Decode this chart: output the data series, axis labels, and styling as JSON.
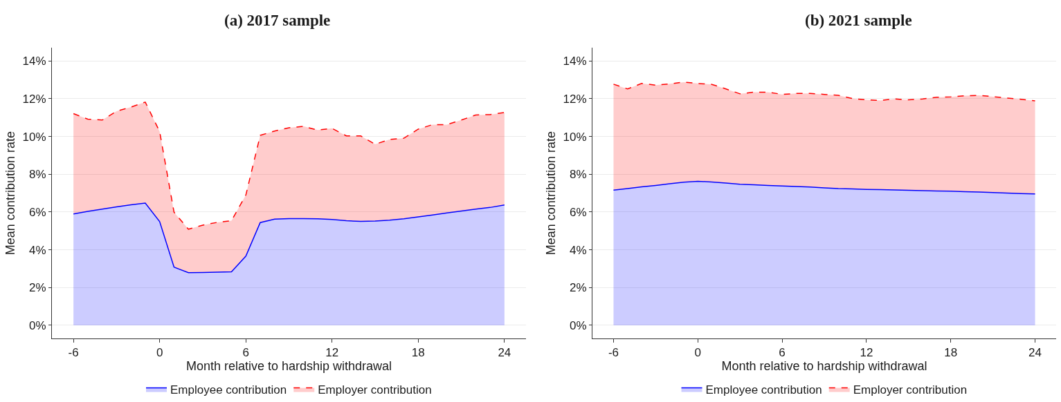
{
  "chart_data": [
    {
      "type": "area",
      "title": "(a) 2017 sample",
      "xlabel": "Month relative to hardship withdrawal",
      "ylabel": "Mean contribution rate",
      "stacked": true,
      "x": [
        -6,
        -5,
        -4,
        -3,
        -2,
        -1,
        0,
        1,
        2,
        3,
        4,
        5,
        6,
        7,
        8,
        9,
        10,
        11,
        12,
        13,
        14,
        15,
        16,
        17,
        18,
        19,
        20,
        21,
        22,
        23,
        24
      ],
      "series": [
        {
          "name": "Employee contribution",
          "color": "#0000ff",
          "line_style": "solid",
          "values": [
            5.9,
            6.03,
            6.15,
            6.27,
            6.38,
            6.47,
            5.49,
            3.08,
            2.79,
            2.8,
            2.81,
            2.83,
            3.66,
            5.44,
            5.62,
            5.65,
            5.65,
            5.64,
            5.6,
            5.54,
            5.5,
            5.52,
            5.57,
            5.64,
            5.74,
            5.84,
            5.95,
            6.05,
            6.15,
            6.24,
            6.37
          ]
        },
        {
          "name": "Employer contribution",
          "color": "#ff0000",
          "line_style": "dashed",
          "values": [
            5.31,
            4.89,
            4.72,
            5.07,
            5.18,
            5.35,
            4.77,
            2.91,
            2.3,
            2.5,
            2.64,
            2.71,
            3.24,
            4.62,
            4.67,
            4.81,
            4.89,
            4.7,
            4.83,
            4.49,
            4.53,
            4.07,
            4.27,
            4.27,
            4.65,
            4.79,
            4.68,
            4.82,
            4.99,
            4.92,
            4.9
          ]
        }
      ],
      "xlim": [
        -7.5,
        25.5
      ],
      "xticks": [
        -6,
        0,
        6,
        12,
        18,
        24
      ],
      "ylim": [
        -0.7,
        14.7
      ],
      "yticks": [
        {
          "value": 0,
          "label": "0%"
        },
        {
          "value": 2,
          "label": "2%"
        },
        {
          "value": 4,
          "label": "4%"
        },
        {
          "value": 6,
          "label": "6%"
        },
        {
          "value": 8,
          "label": "8%"
        },
        {
          "value": 10,
          "label": "10%"
        },
        {
          "value": 12,
          "label": "12%"
        },
        {
          "value": 14,
          "label": "14%"
        }
      ],
      "grid": "y",
      "legend": "bottom"
    },
    {
      "type": "area",
      "title": "(b) 2021 sample",
      "xlabel": "Month relative to hardship withdrawal",
      "ylabel": "Mean contribution rate",
      "stacked": true,
      "x": [
        -6,
        -5,
        -4,
        -3,
        -2,
        -1,
        0,
        1,
        2,
        3,
        4,
        5,
        6,
        7,
        8,
        9,
        10,
        11,
        12,
        13,
        14,
        15,
        16,
        17,
        18,
        19,
        20,
        21,
        22,
        23,
        24
      ],
      "series": [
        {
          "name": "Employee contribution",
          "color": "#0000ff",
          "line_style": "solid",
          "values": [
            7.16,
            7.24,
            7.33,
            7.41,
            7.5,
            7.58,
            7.63,
            7.59,
            7.53,
            7.47,
            7.44,
            7.41,
            7.38,
            7.35,
            7.32,
            7.28,
            7.24,
            7.22,
            7.2,
            7.19,
            7.17,
            7.15,
            7.13,
            7.11,
            7.1,
            7.08,
            7.06,
            7.03,
            7.0,
            6.98,
            6.96
          ]
        },
        {
          "name": "Employer contribution",
          "color": "#ff0000",
          "line_style": "dashed",
          "values": [
            5.61,
            5.28,
            5.48,
            5.31,
            5.29,
            5.3,
            5.18,
            5.17,
            4.99,
            4.79,
            4.91,
            4.94,
            4.85,
            4.93,
            4.96,
            4.95,
            4.94,
            4.79,
            4.74,
            4.72,
            4.82,
            4.79,
            4.86,
            4.97,
            5.0,
            5.08,
            5.12,
            5.08,
            5.04,
            4.99,
            4.93
          ]
        }
      ],
      "xlim": [
        -7.5,
        25.5
      ],
      "xticks": [
        -6,
        0,
        6,
        12,
        18,
        24
      ],
      "ylim": [
        -0.7,
        14.7
      ],
      "yticks": [
        {
          "value": 0,
          "label": "0%"
        },
        {
          "value": 2,
          "label": "2%"
        },
        {
          "value": 4,
          "label": "4%"
        },
        {
          "value": 6,
          "label": "6%"
        },
        {
          "value": 8,
          "label": "8%"
        },
        {
          "value": 10,
          "label": "10%"
        },
        {
          "value": 12,
          "label": "12%"
        },
        {
          "value": 14,
          "label": "14%"
        }
      ],
      "grid": "y",
      "legend": "bottom"
    }
  ]
}
